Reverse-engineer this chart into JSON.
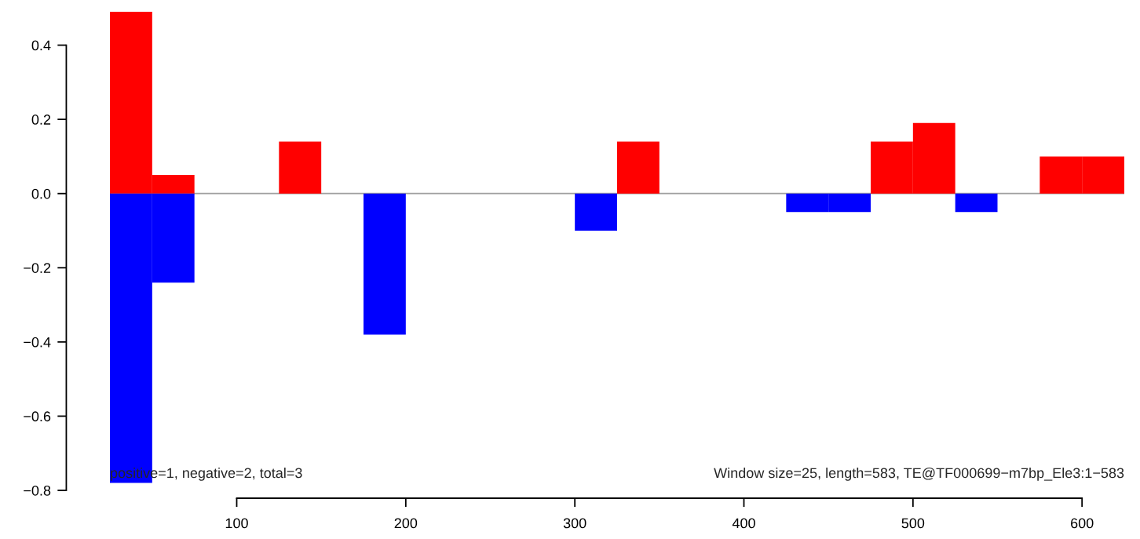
{
  "chart_data": {
    "type": "bar",
    "series": [
      {
        "color": "#ff0000",
        "x": [
          37.5,
          62.5,
          137.5,
          337.5,
          487.5,
          512.5,
          587.5,
          612.5
        ],
        "values": [
          0.49,
          0.05,
          0.14,
          0.14,
          0.14,
          0.19,
          0.1,
          0.1
        ]
      },
      {
        "color": "#0000ff",
        "x": [
          37.5,
          62.5,
          187.5,
          312.5,
          437.5,
          462.5,
          537.5
        ],
        "values": [
          -0.78,
          -0.24,
          -0.38,
          -0.1,
          -0.05,
          -0.05,
          -0.05
        ]
      }
    ],
    "xlim": [
      25,
      625
    ],
    "ylim": [
      -0.8,
      0.49
    ],
    "xticks": [
      100,
      200,
      300,
      400,
      500,
      600
    ],
    "yticks": [
      {
        "value": -0.8,
        "label": "−0.8"
      },
      {
        "value": -0.6,
        "label": "−0.6"
      },
      {
        "value": -0.4,
        "label": "−0.4"
      },
      {
        "value": -0.2,
        "label": "−0.2"
      },
      {
        "value": 0.0,
        "label": "0.0"
      },
      {
        "value": 0.2,
        "label": "0.2"
      },
      {
        "value": 0.4,
        "label": "0.4"
      }
    ],
    "ref_lines": [
      {
        "axis": "y",
        "value": 0,
        "color": "#a0a0a0"
      }
    ],
    "annotations": [
      "positive=1, negative=2, total=3",
      "Window size=25, length=583, TE@TF000699−m7bp_Ele3:1−583"
    ],
    "grid": false,
    "legend": false
  }
}
